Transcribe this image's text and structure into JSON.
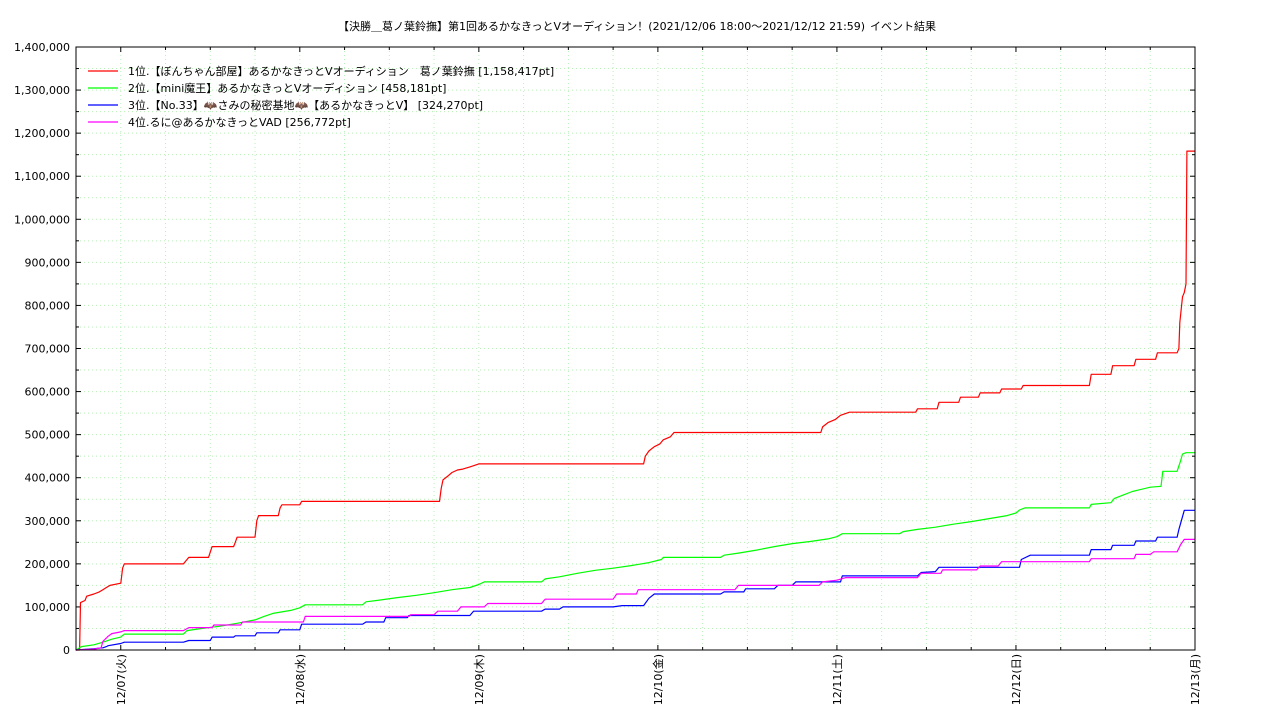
{
  "chart_data": {
    "type": "line",
    "title": "【決勝＿葛ノ葉鈴撫】第1回あるかなきっとVオーディション！(2021/12/06 18:00～2021/12/12 21:59)",
    "subtitle": "イベント結果",
    "xlabel": "",
    "ylabel": "",
    "ylim": [
      0,
      1400000
    ],
    "yticks": [
      "0",
      "100,000",
      "200,000",
      "300,000",
      "400,000",
      "500,000",
      "600,000",
      "700,000",
      "800,000",
      "900,000",
      "1,000,000",
      "1,100,000",
      "1,200,000",
      "1,300,000",
      "1,400,000"
    ],
    "xticks": [
      "12/07(火)",
      "12/08(水)",
      "12/09(木)",
      "12/10(金)",
      "12/11(土)",
      "12/12(日)",
      "12/13(月)"
    ],
    "x_unit": "days since 2021/12/06 18:00",
    "xlim": [
      0,
      6.25
    ],
    "grid": true,
    "legend_position": "top-left",
    "series": [
      {
        "name": "1位.【ぼんちゃん部屋】あるかなきっとVオーディション　葛ノ葉鈴撫 [1,158,417pt]",
        "color": "#ff0000",
        "points": [
          [
            0,
            0
          ],
          [
            0.02,
            0
          ],
          [
            0.025,
            110000
          ],
          [
            0.05,
            115000
          ],
          [
            0.06,
            125000
          ],
          [
            0.1,
            130000
          ],
          [
            0.13,
            135000
          ],
          [
            0.15,
            140000
          ],
          [
            0.17,
            145000
          ],
          [
            0.19,
            150000
          ],
          [
            0.25,
            155000
          ],
          [
            0.26,
            190000
          ],
          [
            0.27,
            200000
          ],
          [
            0.6,
            200000
          ],
          [
            0.63,
            215000
          ],
          [
            0.74,
            215000
          ],
          [
            0.76,
            240000
          ],
          [
            0.88,
            240000
          ],
          [
            0.89,
            250000
          ],
          [
            0.9,
            262000
          ],
          [
            1.0,
            262000
          ],
          [
            1.01,
            300000
          ],
          [
            1.02,
            312000
          ],
          [
            1.13,
            312000
          ],
          [
            1.14,
            330000
          ],
          [
            1.15,
            337000
          ],
          [
            1.25,
            337000
          ],
          [
            1.26,
            345000
          ],
          [
            2.03,
            345000
          ],
          [
            2.04,
            375000
          ],
          [
            2.05,
            395000
          ],
          [
            2.08,
            405000
          ],
          [
            2.1,
            412000
          ],
          [
            2.13,
            418000
          ],
          [
            2.16,
            420000
          ],
          [
            2.2,
            425000
          ],
          [
            2.25,
            432000
          ],
          [
            3.17,
            432000
          ],
          [
            3.18,
            450000
          ],
          [
            3.2,
            462000
          ],
          [
            3.23,
            472000
          ],
          [
            3.26,
            478000
          ],
          [
            3.28,
            488000
          ],
          [
            3.32,
            495000
          ],
          [
            3.34,
            505000
          ],
          [
            4.16,
            505000
          ],
          [
            4.17,
            518000
          ],
          [
            4.2,
            528000
          ],
          [
            4.24,
            535000
          ],
          [
            4.27,
            545000
          ],
          [
            4.32,
            552000
          ],
          [
            4.69,
            552000
          ],
          [
            4.7,
            560000
          ],
          [
            4.81,
            560000
          ],
          [
            4.82,
            575000
          ],
          [
            4.93,
            575000
          ],
          [
            4.94,
            587000
          ],
          [
            5.04,
            587000
          ],
          [
            5.05,
            597000
          ],
          [
            5.16,
            597000
          ],
          [
            5.17,
            606000
          ],
          [
            5.28,
            606000
          ],
          [
            5.29,
            614000
          ],
          [
            5.66,
            614000
          ],
          [
            5.67,
            640000
          ],
          [
            5.78,
            640000
          ],
          [
            5.79,
            660000
          ],
          [
            5.91,
            660000
          ],
          [
            5.92,
            675000
          ],
          [
            6.03,
            675000
          ],
          [
            6.04,
            690000
          ],
          [
            6.15,
            690000
          ],
          [
            6.16,
            700000
          ],
          [
            6.165,
            760000
          ],
          [
            6.175,
            800000
          ],
          [
            6.18,
            820000
          ],
          [
            6.19,
            830000
          ],
          [
            6.2,
            850000
          ],
          [
            6.205,
            1158417
          ],
          [
            6.25,
            1158417
          ]
        ]
      },
      {
        "name": "2位.【mini魔王】あるかなきっとVオーディション [458,181pt]",
        "color": "#00ff00",
        "points": [
          [
            0,
            0
          ],
          [
            0.03,
            8000
          ],
          [
            0.1,
            12000
          ],
          [
            0.15,
            18000
          ],
          [
            0.2,
            25000
          ],
          [
            0.25,
            30000
          ],
          [
            0.27,
            37000
          ],
          [
            0.6,
            37000
          ],
          [
            0.62,
            45000
          ],
          [
            0.7,
            50000
          ],
          [
            0.8,
            55000
          ],
          [
            0.9,
            62000
          ],
          [
            1.0,
            70000
          ],
          [
            1.05,
            78000
          ],
          [
            1.1,
            85000
          ],
          [
            1.2,
            92000
          ],
          [
            1.25,
            98000
          ],
          [
            1.28,
            105000
          ],
          [
            1.6,
            105000
          ],
          [
            1.62,
            112000
          ],
          [
            1.7,
            116000
          ],
          [
            1.8,
            122000
          ],
          [
            1.9,
            127000
          ],
          [
            2.0,
            133000
          ],
          [
            2.1,
            140000
          ],
          [
            2.2,
            145000
          ],
          [
            2.25,
            152000
          ],
          [
            2.28,
            158000
          ],
          [
            2.6,
            158000
          ],
          [
            2.62,
            165000
          ],
          [
            2.7,
            170000
          ],
          [
            2.8,
            178000
          ],
          [
            2.9,
            185000
          ],
          [
            3.0,
            190000
          ],
          [
            3.1,
            196000
          ],
          [
            3.2,
            203000
          ],
          [
            3.27,
            210000
          ],
          [
            3.28,
            215000
          ],
          [
            3.6,
            215000
          ],
          [
            3.62,
            220000
          ],
          [
            3.7,
            225000
          ],
          [
            3.8,
            232000
          ],
          [
            3.9,
            240000
          ],
          [
            4.0,
            247000
          ],
          [
            4.1,
            252000
          ],
          [
            4.2,
            258000
          ],
          [
            4.25,
            263000
          ],
          [
            4.28,
            270000
          ],
          [
            4.6,
            270000
          ],
          [
            4.62,
            275000
          ],
          [
            4.7,
            280000
          ],
          [
            4.8,
            285000
          ],
          [
            4.9,
            292000
          ],
          [
            5.0,
            298000
          ],
          [
            5.1,
            305000
          ],
          [
            5.2,
            312000
          ],
          [
            5.25,
            318000
          ],
          [
            5.27,
            325000
          ],
          [
            5.3,
            330000
          ],
          [
            5.66,
            330000
          ],
          [
            5.67,
            338000
          ],
          [
            5.78,
            342000
          ],
          [
            5.8,
            352000
          ],
          [
            5.85,
            360000
          ],
          [
            5.9,
            368000
          ],
          [
            6.0,
            378000
          ],
          [
            6.06,
            380000
          ],
          [
            6.07,
            415000
          ],
          [
            6.15,
            415000
          ],
          [
            6.17,
            440000
          ],
          [
            6.18,
            455000
          ],
          [
            6.2,
            458181
          ],
          [
            6.25,
            458181
          ]
        ]
      },
      {
        "name": "3位.【No.33】🦇さみの秘密基地🦇【あるかなきっとV】 [324,270pt]",
        "color": "#0000ff",
        "points": [
          [
            0,
            0
          ],
          [
            0.1,
            3000
          ],
          [
            0.15,
            5000
          ],
          [
            0.17,
            8000
          ],
          [
            0.18,
            10000
          ],
          [
            0.25,
            15000
          ],
          [
            0.27,
            18000
          ],
          [
            0.6,
            18000
          ],
          [
            0.63,
            22000
          ],
          [
            0.75,
            22000
          ],
          [
            0.76,
            30000
          ],
          [
            0.88,
            30000
          ],
          [
            0.89,
            33000
          ],
          [
            1.0,
            33000
          ],
          [
            1.01,
            40000
          ],
          [
            1.13,
            40000
          ],
          [
            1.14,
            47000
          ],
          [
            1.25,
            47000
          ],
          [
            1.26,
            60000
          ],
          [
            1.6,
            60000
          ],
          [
            1.62,
            65000
          ],
          [
            1.72,
            65000
          ],
          [
            1.73,
            75000
          ],
          [
            1.85,
            75000
          ],
          [
            1.86,
            80000
          ],
          [
            2.2,
            80000
          ],
          [
            2.22,
            90000
          ],
          [
            2.6,
            90000
          ],
          [
            2.62,
            95000
          ],
          [
            2.7,
            95000
          ],
          [
            2.72,
            100000
          ],
          [
            3.0,
            100000
          ],
          [
            3.05,
            103000
          ],
          [
            3.17,
            103000
          ],
          [
            3.2,
            120000
          ],
          [
            3.23,
            130000
          ],
          [
            3.6,
            130000
          ],
          [
            3.62,
            135000
          ],
          [
            3.73,
            135000
          ],
          [
            3.74,
            142000
          ],
          [
            3.9,
            142000
          ],
          [
            3.92,
            150000
          ],
          [
            4.0,
            150000
          ],
          [
            4.02,
            158000
          ],
          [
            4.27,
            158000
          ],
          [
            4.28,
            172000
          ],
          [
            4.7,
            172000
          ],
          [
            4.72,
            180000
          ],
          [
            4.8,
            182000
          ],
          [
            4.82,
            192000
          ],
          [
            5.27,
            192000
          ],
          [
            5.28,
            210000
          ],
          [
            5.33,
            220000
          ],
          [
            5.66,
            220000
          ],
          [
            5.67,
            233000
          ],
          [
            5.78,
            233000
          ],
          [
            5.79,
            243000
          ],
          [
            5.91,
            243000
          ],
          [
            5.92,
            253000
          ],
          [
            6.03,
            253000
          ],
          [
            6.04,
            262000
          ],
          [
            6.15,
            262000
          ],
          [
            6.16,
            280000
          ],
          [
            6.19,
            324270
          ],
          [
            6.25,
            324270
          ]
        ]
      },
      {
        "name": "4位.るに@あるかなきっとVAD [256,772pt]",
        "color": "#ff00ff",
        "points": [
          [
            0,
            0
          ],
          [
            0.1,
            2000
          ],
          [
            0.14,
            5000
          ],
          [
            0.15,
            20000
          ],
          [
            0.18,
            32000
          ],
          [
            0.2,
            38000
          ],
          [
            0.25,
            42000
          ],
          [
            0.27,
            45000
          ],
          [
            0.6,
            45000
          ],
          [
            0.63,
            52000
          ],
          [
            0.76,
            52000
          ],
          [
            0.77,
            58000
          ],
          [
            0.92,
            58000
          ],
          [
            0.93,
            65000
          ],
          [
            1.27,
            65000
          ],
          [
            1.28,
            78000
          ],
          [
            1.86,
            78000
          ],
          [
            1.87,
            82000
          ],
          [
            2.0,
            82000
          ],
          [
            2.02,
            90000
          ],
          [
            2.13,
            90000
          ],
          [
            2.15,
            100000
          ],
          [
            2.28,
            100000
          ],
          [
            2.3,
            108000
          ],
          [
            2.6,
            108000
          ],
          [
            2.62,
            118000
          ],
          [
            3.0,
            118000
          ],
          [
            3.02,
            130000
          ],
          [
            3.13,
            130000
          ],
          [
            3.14,
            140000
          ],
          [
            3.68,
            140000
          ],
          [
            3.7,
            150000
          ],
          [
            4.15,
            150000
          ],
          [
            4.17,
            158000
          ],
          [
            4.25,
            162000
          ],
          [
            4.3,
            168000
          ],
          [
            4.7,
            168000
          ],
          [
            4.72,
            178000
          ],
          [
            4.83,
            178000
          ],
          [
            4.84,
            186000
          ],
          [
            5.03,
            186000
          ],
          [
            5.05,
            195000
          ],
          [
            5.15,
            195000
          ],
          [
            5.17,
            205000
          ],
          [
            5.66,
            205000
          ],
          [
            5.67,
            212000
          ],
          [
            5.91,
            212000
          ],
          [
            5.92,
            222000
          ],
          [
            6.0,
            222000
          ],
          [
            6.02,
            228000
          ],
          [
            6.15,
            228000
          ],
          [
            6.17,
            245000
          ],
          [
            6.19,
            256772
          ],
          [
            6.25,
            256772
          ]
        ]
      }
    ]
  }
}
